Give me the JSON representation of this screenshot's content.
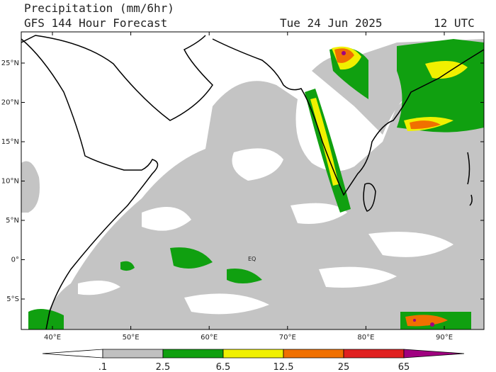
{
  "header": {
    "title": "Precipitation (mm/6hr)",
    "subtitle": "GFS 144 Hour Forecast",
    "date": "Tue 24 Jun 2025",
    "time": "12 UTC"
  },
  "map": {
    "lat_labels": [
      "25°N",
      "20°N",
      "15°N",
      "10°N",
      "5°N",
      "0°",
      "5°S"
    ],
    "lon_labels": [
      "40°E",
      "50°E",
      "60°E",
      "70°E",
      "80°E",
      "90°E"
    ],
    "annotation": "EQ"
  },
  "legend": {
    "labels": [
      ".1",
      "2.5",
      "6.5",
      "12.5",
      "25",
      "65"
    ],
    "colors": [
      "#ffffff",
      "#c0c0c0",
      "#10a010",
      "#f0f000",
      "#f07000",
      "#e02020",
      "#a00080"
    ]
  }
}
